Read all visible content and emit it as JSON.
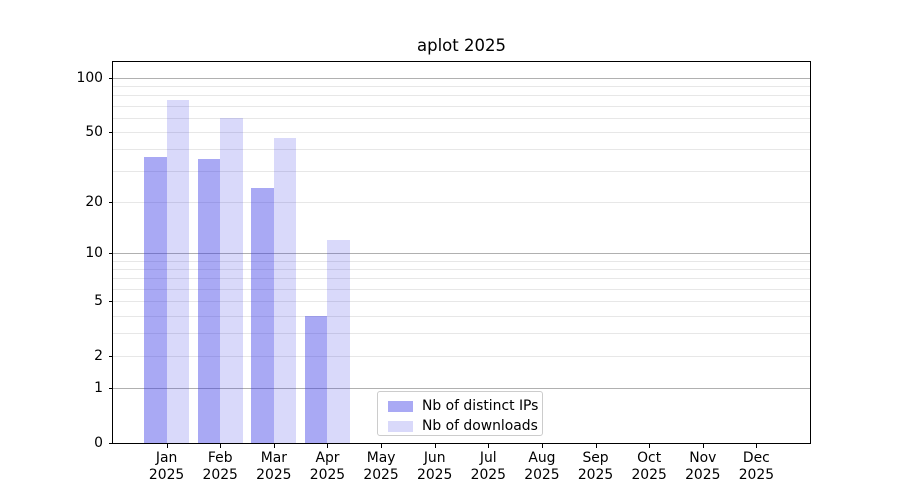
{
  "chart_data": {
    "type": "bar",
    "title": "aplot 2025",
    "x_months": [
      "Jan",
      "Feb",
      "Mar",
      "Apr",
      "May",
      "Jun",
      "Jul",
      "Aug",
      "Sep",
      "Oct",
      "Nov",
      "Dec"
    ],
    "x_year": "2025",
    "series": [
      {
        "name": "Nb of distinct IPs",
        "color": "rgba(50,50,228,0.42)",
        "values": [
          36,
          35,
          24,
          4,
          0,
          0,
          0,
          0,
          0,
          0,
          0,
          0
        ]
      },
      {
        "name": "Nb of downloads",
        "color": "rgba(50,50,228,0.185)",
        "values": [
          75,
          60,
          46,
          12,
          0,
          0,
          0,
          0,
          0,
          0,
          0,
          0
        ]
      }
    ],
    "yscale": "log1p",
    "ylim": [
      0,
      122
    ],
    "y_ticks": [
      0,
      1,
      2,
      5,
      10,
      20,
      50,
      100
    ],
    "y_major_gridlines": [
      1,
      10,
      100
    ],
    "y_minor_gridlines": [
      2,
      3,
      4,
      5,
      6,
      7,
      8,
      9,
      20,
      30,
      40,
      50,
      60,
      70,
      80,
      90
    ],
    "grid_major_color": "#b0b0b0",
    "grid_minor_color": "#e7e7e7",
    "axis_color": "#000000",
    "text_color": "#000000",
    "legend_border_color": "#cccccc",
    "legend_position": "lower center"
  }
}
